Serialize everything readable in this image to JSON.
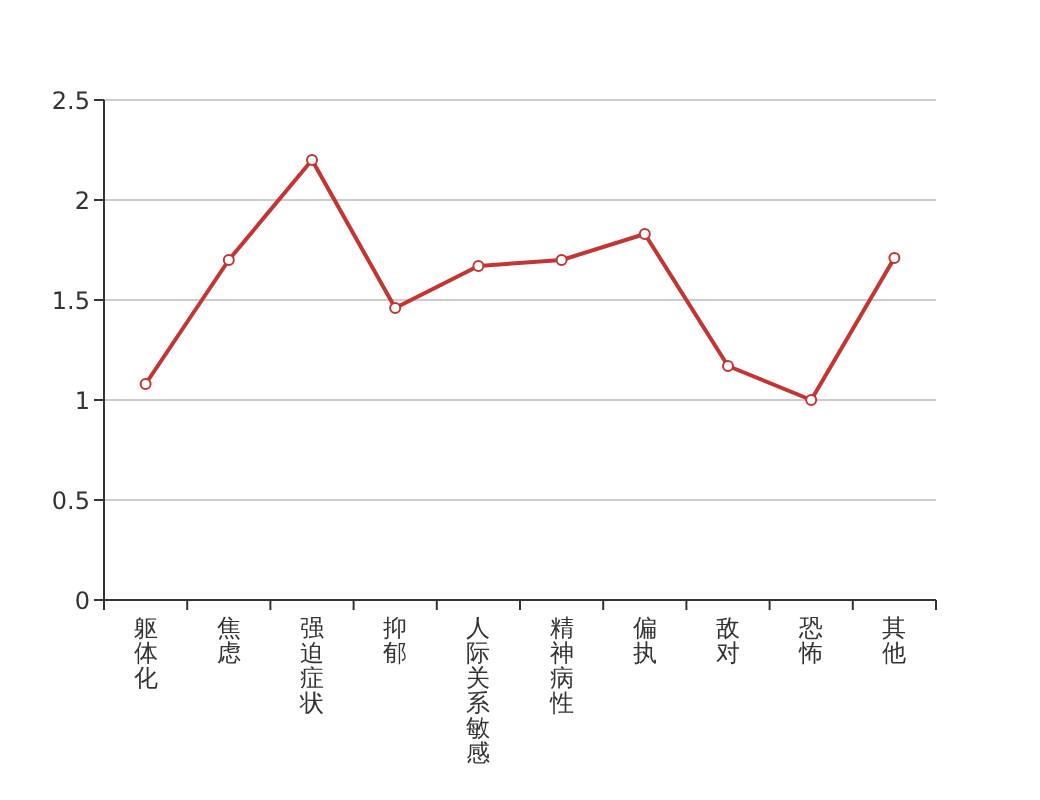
{
  "chart_data": {
    "type": "line",
    "categories": [
      "躯体化",
      "焦虑",
      "强迫症状",
      "抑郁",
      "人际关系敏感",
      "精神病性",
      "偏执",
      "敌对",
      "恐怖",
      "其他"
    ],
    "series": [
      {
        "color": "#c23531",
        "values": [
          1.08,
          1.7,
          2.2,
          1.46,
          1.67,
          1.7,
          1.83,
          1.17,
          1.0,
          1.71
        ]
      }
    ],
    "ylim": [
      0,
      2.5
    ],
    "yticks": [
      0,
      0.5,
      1,
      1.5,
      2,
      2.5
    ],
    "grid": "y",
    "marker": "circle",
    "line_style": "solid"
  }
}
